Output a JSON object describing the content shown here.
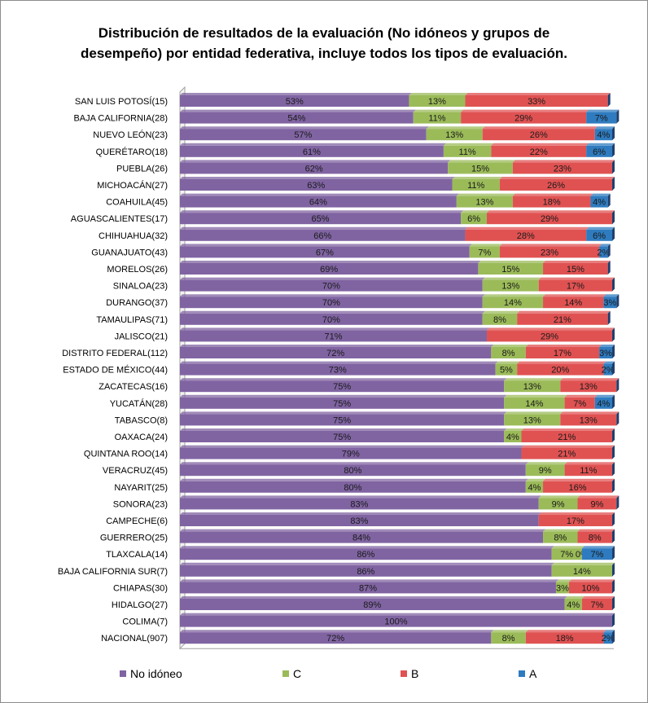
{
  "title": "Distribución de resultados de la evaluación (No idóneos y grupos de\ndesempeño) por entidad federativa, incluye todos los tipos de evaluación.",
  "colors": {
    "no_idoneo": "#8064a2",
    "c": "#9bbb59",
    "b": "#e05252",
    "a": "#2f7bbf"
  },
  "chart_data": {
    "type": "bar",
    "orientation": "horizontal",
    "stacked": true,
    "percent_stacked": true,
    "xlim": [
      0,
      100
    ],
    "grid": false,
    "legend_position": "bottom",
    "categories": [
      "SAN LUIS POTOSÍ(15)",
      "BAJA CALIFORNIA(28)",
      "NUEVO LEÓN(23)",
      "QUERÉTARO(18)",
      "PUEBLA(26)",
      "MICHOACÁN(27)",
      "COAHUILA(45)",
      "AGUASCALIENTES(17)",
      "CHIHUAHUA(32)",
      "GUANAJUATO(43)",
      "MORELOS(26)",
      "SINALOA(23)",
      "DURANGO(37)",
      "TAMAULIPAS(71)",
      "JALISCO(21)",
      "DISTRITO FEDERAL(112)",
      "ESTADO DE MÉXICO(44)",
      "ZACATECAS(16)",
      "YUCATÁN(28)",
      "TABASCO(8)",
      "OAXACA(24)",
      "QUINTANA ROO(14)",
      "VERACRUZ(45)",
      "NAYARIT(25)",
      "SONORA(23)",
      "CAMPECHE(6)",
      "GUERRERO(25)",
      "TLAXCALA(14)",
      "BAJA CALIFORNIA SUR(7)",
      "CHIAPAS(30)",
      "HIDALGO(27)",
      "COLIMA(7)",
      "NACIONAL(907)"
    ],
    "series": [
      {
        "name": "No idóneo",
        "key": "no_idoneo",
        "values": [
          53,
          54,
          57,
          61,
          62,
          63,
          64,
          65,
          66,
          67,
          69,
          70,
          70,
          70,
          71,
          72,
          73,
          75,
          75,
          75,
          75,
          79,
          80,
          80,
          83,
          83,
          84,
          86,
          86,
          87,
          89,
          100,
          72
        ],
        "labels": [
          "53%",
          "54%",
          "57%",
          "61%",
          "62%",
          "63%",
          "64%",
          "65%",
          "66%",
          "67%",
          "69%",
          "70%",
          "70%",
          "70%",
          "71%",
          "72%",
          "73%",
          "75%",
          "75%",
          "75%",
          "75%",
          "79%",
          "80%",
          "80%",
          "83%",
          "83%",
          "84%",
          "86%",
          "86%",
          "87%",
          "89%",
          "100%",
          "72%"
        ]
      },
      {
        "name": "C",
        "key": "c",
        "values": [
          13,
          11,
          13,
          11,
          15,
          11,
          13,
          6,
          0,
          7,
          15,
          13,
          14,
          8,
          0,
          8,
          5,
          13,
          14,
          13,
          4,
          0,
          9,
          4,
          9,
          0,
          8,
          7,
          14,
          3,
          4,
          0,
          8
        ],
        "labels": [
          "13%",
          "11%",
          "13%",
          "11%",
          "15%",
          "11%",
          "13%",
          "6%",
          "",
          "7%",
          "15%",
          "13%",
          "14%",
          "8%",
          "",
          "8%",
          "5%",
          "13%",
          "14%",
          "13%",
          "4%",
          "",
          "9%",
          "4%",
          "9%",
          "",
          "8%",
          "7%",
          "14%",
          "3%",
          "4%",
          "",
          "8%"
        ]
      },
      {
        "name": "B",
        "key": "b",
        "values": [
          33,
          29,
          26,
          22,
          23,
          26,
          18,
          29,
          28,
          23,
          15,
          17,
          14,
          21,
          29,
          17,
          20,
          13,
          7,
          13,
          21,
          21,
          11,
          16,
          9,
          17,
          8,
          0,
          0,
          10,
          7,
          0,
          18
        ],
        "labels": [
          "33%",
          "29%",
          "26%",
          "22%",
          "23%",
          "26%",
          "18%",
          "29%",
          "28%",
          "23%",
          "15%",
          "17%",
          "14%",
          "21%",
          "29%",
          "17%",
          "20%",
          "13%",
          "7%",
          "13%",
          "21%",
          "21%",
          "11%",
          "16%",
          "9%",
          "17%",
          "8%",
          "0%",
          "",
          "10%",
          "7%",
          "",
          "18%"
        ]
      },
      {
        "name": "A",
        "key": "a",
        "values": [
          0,
          7,
          4,
          6,
          0,
          0,
          4,
          0,
          6,
          2,
          0,
          0,
          3,
          0,
          0,
          3,
          2,
          0,
          4,
          0,
          0,
          0,
          0,
          0,
          0,
          0,
          0,
          7,
          0,
          0,
          0,
          0,
          2
        ],
        "labels": [
          "",
          "7%",
          "4%",
          "6%",
          "",
          "",
          "4%",
          "",
          "6%",
          "2%",
          "",
          "",
          "3%",
          "",
          "",
          "3%",
          "2%",
          "",
          "4%",
          "",
          "",
          "",
          "",
          "",
          "",
          "",
          "",
          "7%",
          "",
          "",
          "",
          "",
          "2%"
        ]
      }
    ]
  }
}
